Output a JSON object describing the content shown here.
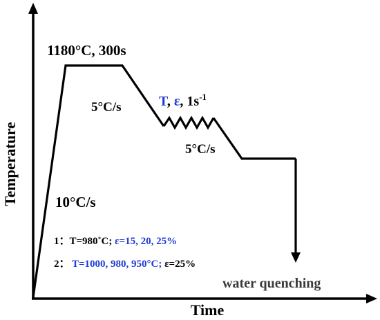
{
  "axes": {
    "x_label": "Time",
    "y_label": "Temperature"
  },
  "labels": {
    "hold": "1180°C, 300s",
    "heat_rate": "10°C/s",
    "cool_rate_1": "5°C/s",
    "cool_rate_2": "5°C/s",
    "deform_T": "T",
    "deform_sep1": ", ",
    "deform_eps": "ε",
    "deform_rate": ", 1s",
    "deform_rate_sup": "-1",
    "quench": "water quenching"
  },
  "conditions": {
    "row1_prefix": "1：T=980˚C;  ",
    "row1_highlight": "ε=15, 20, 25%",
    "row2_prefix": "2：  ",
    "row2_highlight": "T=1000, 980, 950°C;",
    "row2_suffix": " ε=25%"
  },
  "colors": {
    "line": "#000000",
    "highlight": "#1f3bd6"
  }
}
